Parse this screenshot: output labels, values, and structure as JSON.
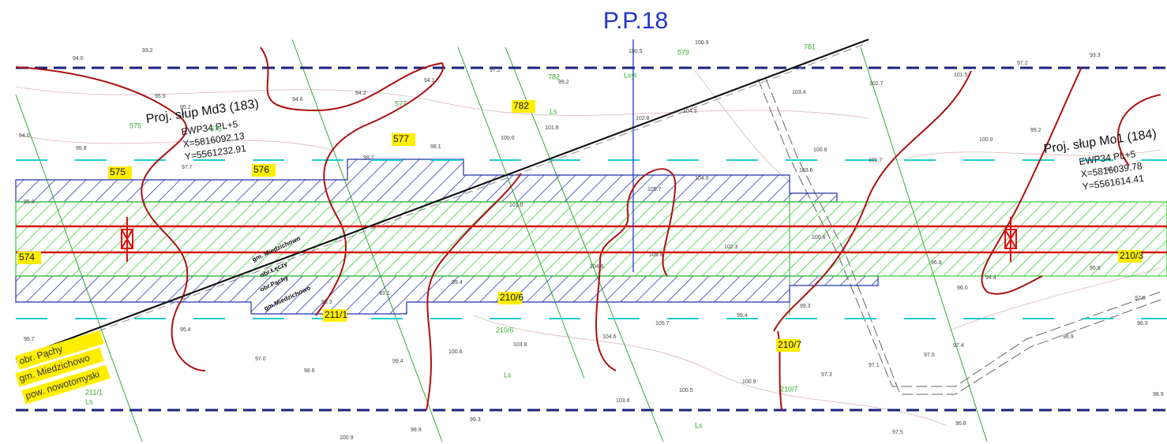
{
  "header": {
    "title": "P.P.18"
  },
  "poles": [
    {
      "label": "Proj. słup Md3 (183)",
      "model": "EWP34 PL+5",
      "x": "X=5816092.13",
      "y": "Y=5561232.91"
    },
    {
      "label": "Proj. słup Mo1 (184)",
      "model": "EWP34 PL+5",
      "x": "X=5816039.78",
      "y": "Y=5561614.41"
    }
  ],
  "parcels_highlighted": [
    "575",
    "576",
    "577",
    "782",
    "574",
    "211/1",
    "210/6",
    "210/7",
    "210/3"
  ],
  "boundary_labels": [
    "obr. Pąchy",
    "gm. Miedzichowo",
    "pow. nowotomyski"
  ],
  "line_labels": [
    "gm. Miedzichowo",
    "obr.Łęczy",
    "obr.Pąchy",
    "gm.Miedzichowo"
  ],
  "parcel_numbers": [
    "575",
    "576",
    "577",
    "782",
    "579",
    "781",
    "210/6",
    "211/1",
    "210/7",
    "Ls",
    "Ls",
    "Ls",
    "Ls",
    "Lsyl"
  ],
  "elevations": [
    "94.6",
    "93.2",
    "94.0",
    "95.8",
    "95.5",
    "95.2",
    "94.6",
    "94.2",
    "94.1",
    "99.2",
    "97.2",
    "100.5",
    "100.9",
    "102.8",
    "101.8",
    "100.0",
    "98.1",
    "104.3",
    "103.4",
    "102.7",
    "101.5",
    "97.2",
    "93.3",
    "100.8",
    "101.7",
    "100.0",
    "99.2",
    "93.6",
    "95.8",
    "97.7",
    "98.7",
    "101.0",
    "105.7",
    "104.0",
    "103.6",
    "100.8",
    "102.3",
    "105.8",
    "104.6",
    "99.4",
    "93.1",
    "98.3",
    "96.0",
    "94.4",
    "95.9",
    "97.6",
    "96.8",
    "96.7",
    "95.4",
    "97.0",
    "98.6",
    "99.4",
    "100.6",
    "103.8",
    "105.7",
    "104.6",
    "103.6",
    "100.5",
    "99.3",
    "98.9",
    "100.9",
    "99.4",
    "99.3",
    "97.3",
    "97.1",
    "97.0",
    "97.4",
    "96.9",
    "96.3",
    "98.9",
    "100.9",
    "97.5",
    "96.8"
  ]
}
